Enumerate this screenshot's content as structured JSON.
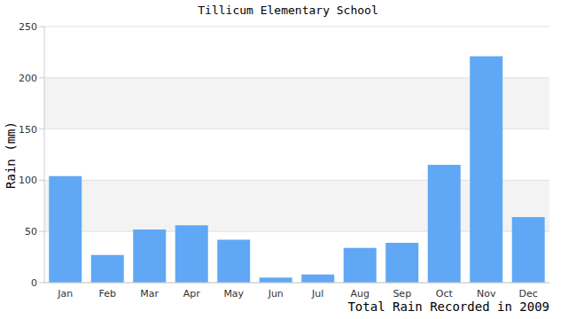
{
  "chart_data": {
    "type": "bar",
    "title": "Tillicum Elementary School",
    "x_label": "Total Rain Recorded in 2009",
    "y_label": "Rain (mm)",
    "categories": [
      "Jan",
      "Feb",
      "Mar",
      "Apr",
      "May",
      "Jun",
      "Jul",
      "Aug",
      "Sep",
      "Oct",
      "Nov",
      "Dec"
    ],
    "values": [
      104,
      27,
      52,
      56,
      42,
      5,
      8,
      34,
      39,
      115,
      221,
      64
    ],
    "color": "#60a8f5",
    "ylim": [
      0,
      250
    ],
    "yticks": [
      0,
      50,
      100,
      150,
      200,
      250
    ],
    "grid": true
  }
}
